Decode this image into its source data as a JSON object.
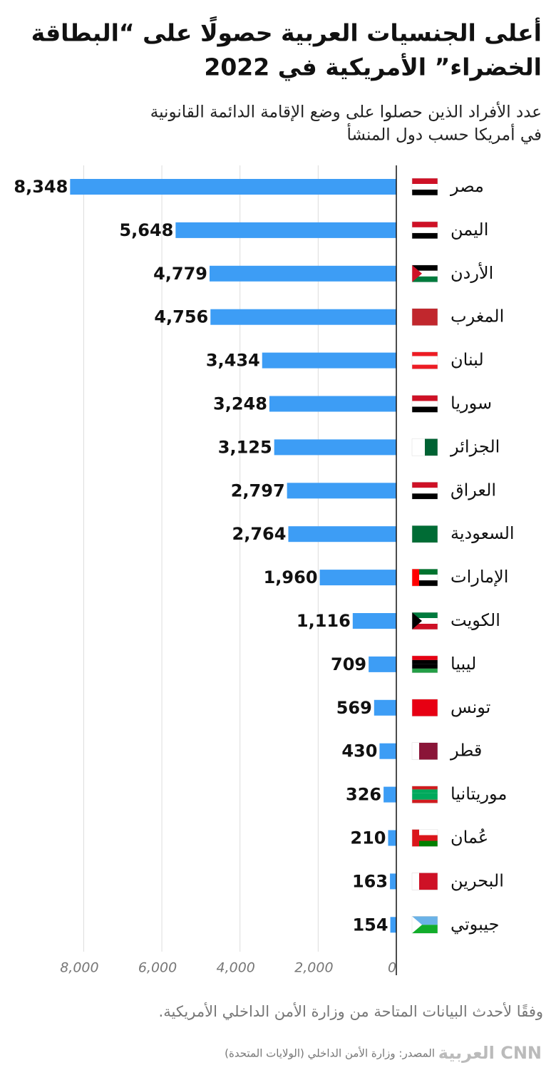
{
  "chart_data": {
    "type": "bar",
    "orientation": "horizontal",
    "reversed": true,
    "title": [
      "أعلى الجنسيات العربية حصولًا على “البطاقة",
      "الخضراء” الأمريكية في 2022"
    ],
    "subtitle": [
      "عدد الأفراد الذين حصلوا على وضع الإقامة الدائمة القانونية",
      "في أمريكا حسب دول المنشأ"
    ],
    "categories": [
      "مصر",
      "اليمن",
      "الأردن",
      "المغرب",
      "لبنان",
      "سوريا",
      "الجزائر",
      "العراق",
      "السعودية",
      "الإمارات",
      "الكويت",
      "ليبيا",
      "تونس",
      "قطر",
      "موريتانيا",
      "عُمان",
      "البحرين",
      "جيبوتي"
    ],
    "values": [
      8348,
      5648,
      4779,
      4756,
      3434,
      3248,
      3125,
      2797,
      2764,
      1960,
      1116,
      709,
      569,
      430,
      326,
      210,
      163,
      154
    ],
    "value_labels": [
      "8,348",
      "5,648",
      "4,779",
      "4,756",
      "3,434",
      "3,248",
      "3,125",
      "2,797",
      "2,764",
      "1,960",
      "1,116",
      "709",
      "569",
      "430",
      "326",
      "210",
      "163",
      "154"
    ],
    "color": "#3d9df5",
    "xlim": [
      0,
      8500
    ],
    "xticks": [
      0,
      {
        "value": 2000,
        "label": "2,000"
      },
      {
        "value": 4000,
        "label": "4,000"
      },
      {
        "value": 6000,
        "label": "6,000"
      },
      {
        "value": 8000,
        "label": "8,000"
      }
    ],
    "grid": true,
    "footnote": "وفقًا لأحدث البيانات المتاحة من وزارة الأمن الداخلي الأمريكية.",
    "source": "المصدر: وزارة الأمن الداخلي (الولايات المتحدة)",
    "logo": "العربية CNN"
  }
}
